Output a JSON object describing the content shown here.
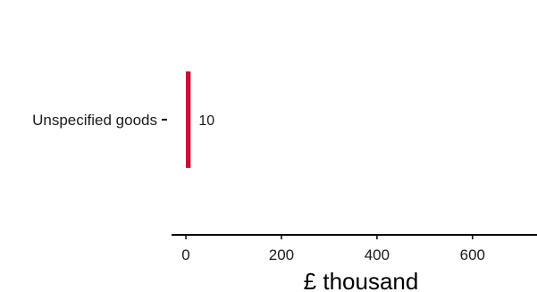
{
  "chart_data": {
    "type": "bar",
    "orientation": "horizontal",
    "categories": [
      "Unspecified goods"
    ],
    "values": [
      10
    ],
    "data_labels": [
      "10"
    ],
    "title": "",
    "xlabel": "£ thousand",
    "ylabel": "",
    "xlim": [
      -30,
      735
    ],
    "x_ticks": [
      0,
      200,
      400,
      600
    ],
    "x_tick_labels": [
      "0",
      "200",
      "400",
      "600"
    ],
    "grid": false,
    "legend": "none",
    "bar_color": "#c8102e"
  }
}
